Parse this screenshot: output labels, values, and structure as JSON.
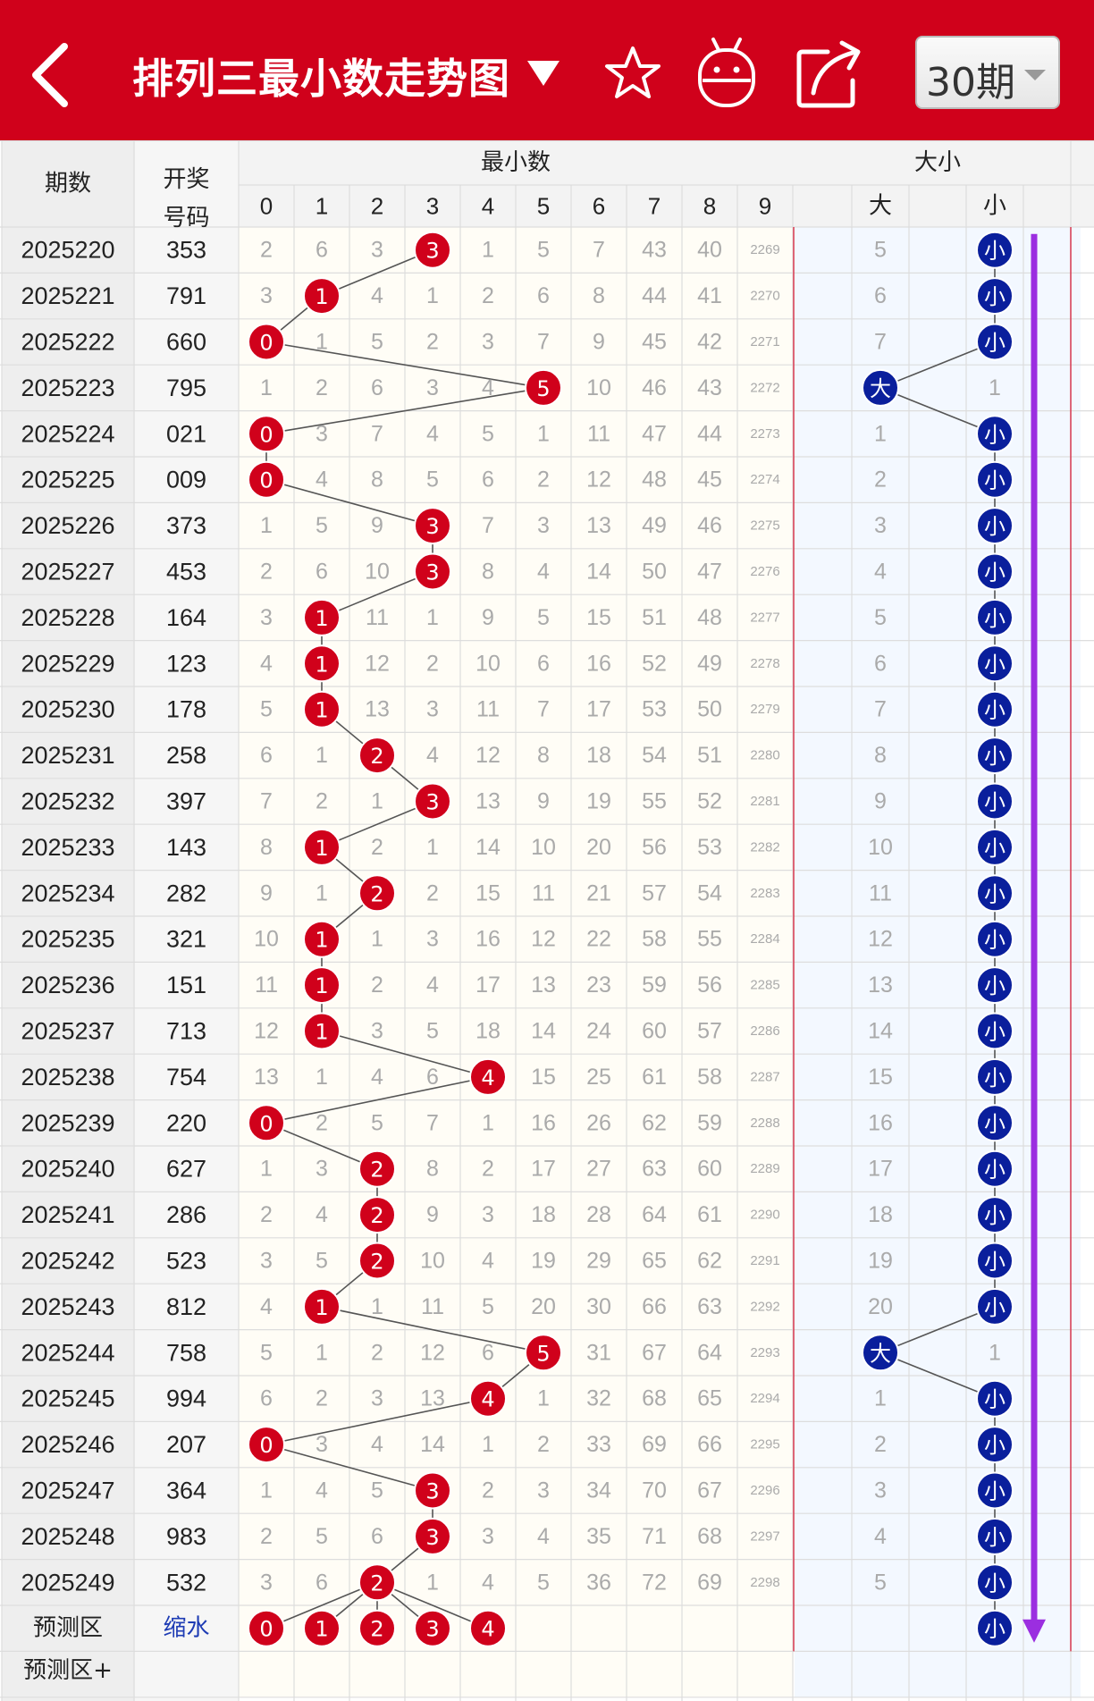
{
  "header": {
    "title": "排列三最小数走势图",
    "period_select": "30期",
    "icons": [
      "back-arrow-icon",
      "dropdown-caret-icon",
      "star-icon",
      "robot-icon",
      "share-icon"
    ]
  },
  "table": {
    "col_period": "期数",
    "col_draw_l1": "开奖",
    "col_draw_l2": "号码",
    "group_min": "最小数",
    "group_size": "大小",
    "digit_headers": [
      "0",
      "1",
      "2",
      "3",
      "4",
      "5",
      "6",
      "7",
      "8",
      "9"
    ],
    "big_label": "大",
    "small_label": "小",
    "rows": [
      {
        "period": "2025220",
        "draw": "353",
        "cells": [
          "2",
          "6",
          "3",
          "3",
          "1",
          "5",
          "7",
          "43",
          "40",
          "2269"
        ],
        "hit": 3,
        "big": "5",
        "small": "小",
        "size": "small"
      },
      {
        "period": "2025221",
        "draw": "791",
        "cells": [
          "3",
          "1",
          "4",
          "1",
          "2",
          "6",
          "8",
          "44",
          "41",
          "2270"
        ],
        "hit": 1,
        "big": "6",
        "small": "小",
        "size": "small"
      },
      {
        "period": "2025222",
        "draw": "660",
        "cells": [
          "0",
          "1",
          "5",
          "2",
          "3",
          "7",
          "9",
          "45",
          "42",
          "2271"
        ],
        "hit": 0,
        "big": "7",
        "small": "小",
        "size": "small"
      },
      {
        "period": "2025223",
        "draw": "795",
        "cells": [
          "1",
          "2",
          "6",
          "3",
          "4",
          "5",
          "10",
          "46",
          "43",
          "2272"
        ],
        "hit": 5,
        "big": "大",
        "small": "1",
        "size": "big"
      },
      {
        "period": "2025224",
        "draw": "021",
        "cells": [
          "0",
          "3",
          "7",
          "4",
          "5",
          "1",
          "11",
          "47",
          "44",
          "2273"
        ],
        "hit": 0,
        "big": "1",
        "small": "小",
        "size": "small"
      },
      {
        "period": "2025225",
        "draw": "009",
        "cells": [
          "0",
          "4",
          "8",
          "5",
          "6",
          "2",
          "12",
          "48",
          "45",
          "2274"
        ],
        "hit": 0,
        "big": "2",
        "small": "小",
        "size": "small"
      },
      {
        "period": "2025226",
        "draw": "373",
        "cells": [
          "1",
          "5",
          "9",
          "3",
          "7",
          "3",
          "13",
          "49",
          "46",
          "2275"
        ],
        "hit": 3,
        "big": "3",
        "small": "小",
        "size": "small"
      },
      {
        "period": "2025227",
        "draw": "453",
        "cells": [
          "2",
          "6",
          "10",
          "3",
          "8",
          "4",
          "14",
          "50",
          "47",
          "2276"
        ],
        "hit": 3,
        "big": "4",
        "small": "小",
        "size": "small"
      },
      {
        "period": "2025228",
        "draw": "164",
        "cells": [
          "3",
          "1",
          "11",
          "1",
          "9",
          "5",
          "15",
          "51",
          "48",
          "2277"
        ],
        "hit": 1,
        "big": "5",
        "small": "小",
        "size": "small"
      },
      {
        "period": "2025229",
        "draw": "123",
        "cells": [
          "4",
          "1",
          "12",
          "2",
          "10",
          "6",
          "16",
          "52",
          "49",
          "2278"
        ],
        "hit": 1,
        "big": "6",
        "small": "小",
        "size": "small"
      },
      {
        "period": "2025230",
        "draw": "178",
        "cells": [
          "5",
          "1",
          "13",
          "3",
          "11",
          "7",
          "17",
          "53",
          "50",
          "2279"
        ],
        "hit": 1,
        "big": "7",
        "small": "小",
        "size": "small"
      },
      {
        "period": "2025231",
        "draw": "258",
        "cells": [
          "6",
          "1",
          "2",
          "4",
          "12",
          "8",
          "18",
          "54",
          "51",
          "2280"
        ],
        "hit": 2,
        "big": "8",
        "small": "小",
        "size": "small"
      },
      {
        "period": "2025232",
        "draw": "397",
        "cells": [
          "7",
          "2",
          "1",
          "3",
          "13",
          "9",
          "19",
          "55",
          "52",
          "2281"
        ],
        "hit": 3,
        "big": "9",
        "small": "小",
        "size": "small"
      },
      {
        "period": "2025233",
        "draw": "143",
        "cells": [
          "8",
          "1",
          "2",
          "1",
          "14",
          "10",
          "20",
          "56",
          "53",
          "2282"
        ],
        "hit": 1,
        "big": "10",
        "small": "小",
        "size": "small"
      },
      {
        "period": "2025234",
        "draw": "282",
        "cells": [
          "9",
          "1",
          "2",
          "2",
          "15",
          "11",
          "21",
          "57",
          "54",
          "2283"
        ],
        "hit": 2,
        "big": "11",
        "small": "小",
        "size": "small"
      },
      {
        "period": "2025235",
        "draw": "321",
        "cells": [
          "10",
          "1",
          "1",
          "3",
          "16",
          "12",
          "22",
          "58",
          "55",
          "2284"
        ],
        "hit": 1,
        "big": "12",
        "small": "小",
        "size": "small"
      },
      {
        "period": "2025236",
        "draw": "151",
        "cells": [
          "11",
          "1",
          "2",
          "4",
          "17",
          "13",
          "23",
          "59",
          "56",
          "2285"
        ],
        "hit": 1,
        "big": "13",
        "small": "小",
        "size": "small"
      },
      {
        "period": "2025237",
        "draw": "713",
        "cells": [
          "12",
          "1",
          "3",
          "5",
          "18",
          "14",
          "24",
          "60",
          "57",
          "2286"
        ],
        "hit": 1,
        "big": "14",
        "small": "小",
        "size": "small"
      },
      {
        "period": "2025238",
        "draw": "754",
        "cells": [
          "13",
          "1",
          "4",
          "6",
          "4",
          "15",
          "25",
          "61",
          "58",
          "2287"
        ],
        "hit": 4,
        "big": "15",
        "small": "小",
        "size": "small"
      },
      {
        "period": "2025239",
        "draw": "220",
        "cells": [
          "0",
          "2",
          "5",
          "7",
          "1",
          "16",
          "26",
          "62",
          "59",
          "2288"
        ],
        "hit": 0,
        "big": "16",
        "small": "小",
        "size": "small"
      },
      {
        "period": "2025240",
        "draw": "627",
        "cells": [
          "1",
          "3",
          "2",
          "8",
          "2",
          "17",
          "27",
          "63",
          "60",
          "2289"
        ],
        "hit": 2,
        "big": "17",
        "small": "小",
        "size": "small"
      },
      {
        "period": "2025241",
        "draw": "286",
        "cells": [
          "2",
          "4",
          "2",
          "9",
          "3",
          "18",
          "28",
          "64",
          "61",
          "2290"
        ],
        "hit": 2,
        "big": "18",
        "small": "小",
        "size": "small"
      },
      {
        "period": "2025242",
        "draw": "523",
        "cells": [
          "3",
          "5",
          "2",
          "10",
          "4",
          "19",
          "29",
          "65",
          "62",
          "2291"
        ],
        "hit": 2,
        "big": "19",
        "small": "小",
        "size": "small"
      },
      {
        "period": "2025243",
        "draw": "812",
        "cells": [
          "4",
          "1",
          "1",
          "11",
          "5",
          "20",
          "30",
          "66",
          "63",
          "2292"
        ],
        "hit": 1,
        "big": "20",
        "small": "小",
        "size": "small"
      },
      {
        "period": "2025244",
        "draw": "758",
        "cells": [
          "5",
          "1",
          "2",
          "12",
          "6",
          "5",
          "31",
          "67",
          "64",
          "2293"
        ],
        "hit": 5,
        "big": "大",
        "small": "1",
        "size": "big"
      },
      {
        "period": "2025245",
        "draw": "994",
        "cells": [
          "6",
          "2",
          "3",
          "13",
          "4",
          "1",
          "32",
          "68",
          "65",
          "2294"
        ],
        "hit": 4,
        "big": "1",
        "small": "小",
        "size": "small"
      },
      {
        "period": "2025246",
        "draw": "207",
        "cells": [
          "0",
          "3",
          "4",
          "14",
          "1",
          "2",
          "33",
          "69",
          "66",
          "2295"
        ],
        "hit": 0,
        "big": "2",
        "small": "小",
        "size": "small"
      },
      {
        "period": "2025247",
        "draw": "364",
        "cells": [
          "1",
          "4",
          "5",
          "3",
          "2",
          "3",
          "34",
          "70",
          "67",
          "2296"
        ],
        "hit": 3,
        "big": "3",
        "small": "小",
        "size": "small"
      },
      {
        "period": "2025248",
        "draw": "983",
        "cells": [
          "2",
          "5",
          "6",
          "3",
          "3",
          "4",
          "35",
          "71",
          "68",
          "2297"
        ],
        "hit": 3,
        "big": "4",
        "small": "小",
        "size": "small"
      },
      {
        "period": "2025249",
        "draw": "532",
        "cells": [
          "3",
          "6",
          "2",
          "1",
          "4",
          "5",
          "36",
          "72",
          "69",
          "2298"
        ],
        "hit": 2,
        "big": "5",
        "small": "小",
        "size": "small"
      }
    ],
    "predict_row": {
      "label": "预测区",
      "draw_link": "缩水",
      "balls": [
        "0",
        "1",
        "2",
        "3",
        "4"
      ],
      "size_ball": "小"
    },
    "predict_plus_label": "预测区+"
  },
  "colors": {
    "header_red": "#d0011b",
    "ball_red": "#d0011b",
    "ball_blue": "#0a1f9c",
    "trend_arrow": "#9b2ee0",
    "grid_line": "#dddddd",
    "period_bg": "#eeeeee",
    "number_gray": "#999999",
    "number_dark": "#222222"
  }
}
